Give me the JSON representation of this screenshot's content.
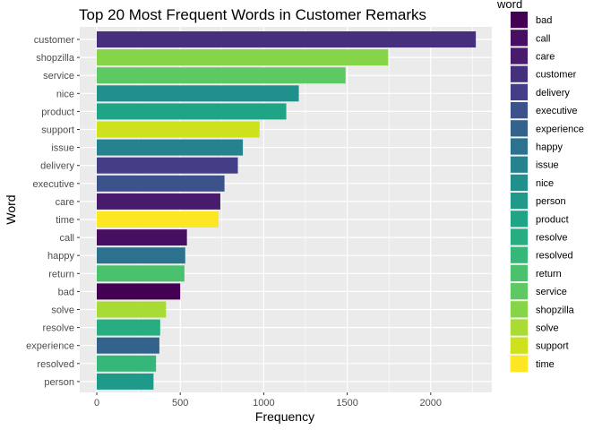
{
  "chart_data": {
    "type": "bar",
    "orientation": "horizontal",
    "title": "Top 20 Most Frequent Words in Customer Remarks",
    "xlabel": "Frequency",
    "ylabel": "Word",
    "xlim": [
      0,
      2350
    ],
    "x_ticks": [
      0,
      500,
      1000,
      1500,
      2000
    ],
    "grid": true,
    "legend_position": "right",
    "legend_title": "word",
    "categories": [
      "customer",
      "shopzilla",
      "service",
      "nice",
      "product",
      "support",
      "issue",
      "delivery",
      "executive",
      "care",
      "time",
      "call",
      "happy",
      "return",
      "bad",
      "solve",
      "resolve",
      "experience",
      "resolved",
      "person"
    ],
    "values": [
      2270,
      1745,
      1490,
      1210,
      1135,
      975,
      875,
      845,
      765,
      740,
      730,
      540,
      530,
      525,
      500,
      415,
      380,
      375,
      355,
      340
    ],
    "legend_entries": [
      {
        "label": "bad",
        "color": "#440154"
      },
      {
        "label": "call",
        "color": "#470E61"
      },
      {
        "label": "care",
        "color": "#481B6D"
      },
      {
        "label": "customer",
        "color": "#46307E"
      },
      {
        "label": "delivery",
        "color": "#433E85"
      },
      {
        "label": "executive",
        "color": "#3B528B"
      },
      {
        "label": "experience",
        "color": "#33638D"
      },
      {
        "label": "happy",
        "color": "#2C728E"
      },
      {
        "label": "issue",
        "color": "#26828E"
      },
      {
        "label": "nice",
        "color": "#21908C"
      },
      {
        "label": "person",
        "color": "#1F9A8A"
      },
      {
        "label": "product",
        "color": "#20A486"
      },
      {
        "label": "resolve",
        "color": "#27AD81"
      },
      {
        "label": "resolved",
        "color": "#35B779"
      },
      {
        "label": "return",
        "color": "#4AC16D"
      },
      {
        "label": "service",
        "color": "#5EC962"
      },
      {
        "label": "shopzilla",
        "color": "#86D549"
      },
      {
        "label": "solve",
        "color": "#A8DB34"
      },
      {
        "label": "support",
        "color": "#CDE11D"
      },
      {
        "label": "time",
        "color": "#FDE725"
      }
    ],
    "panel_color": "#EBEBEB",
    "grid_color": "#FFFFFF"
  }
}
